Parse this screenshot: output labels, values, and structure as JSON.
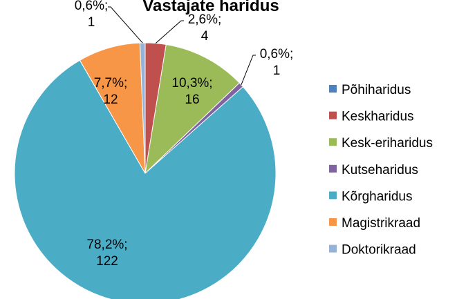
{
  "chart_data": {
    "type": "pie",
    "title": "Vastajate haridus",
    "categories": [
      "Põhiharidus",
      "Keskharidus",
      "Kesk-eriharidus",
      "Kutseharidus",
      "Kõrgharidus",
      "Magistrikraad",
      "Doktorikraad"
    ],
    "values": [
      0,
      4,
      16,
      1,
      122,
      12,
      1
    ],
    "value_labels": [
      null,
      [
        "2,6%;",
        "4"
      ],
      [
        "10,3%;",
        "16"
      ],
      [
        "0,6%;",
        "1"
      ],
      [
        "78,2%;",
        "122"
      ],
      [
        "7,7%;",
        "12"
      ],
      [
        "0,6%;",
        "1"
      ]
    ],
    "colors": [
      "#4F81BD",
      "#C0504D",
      "#9BBB59",
      "#8064A2",
      "#4BACC6",
      "#F79646",
      "#95B3D7"
    ],
    "legend": "right"
  }
}
